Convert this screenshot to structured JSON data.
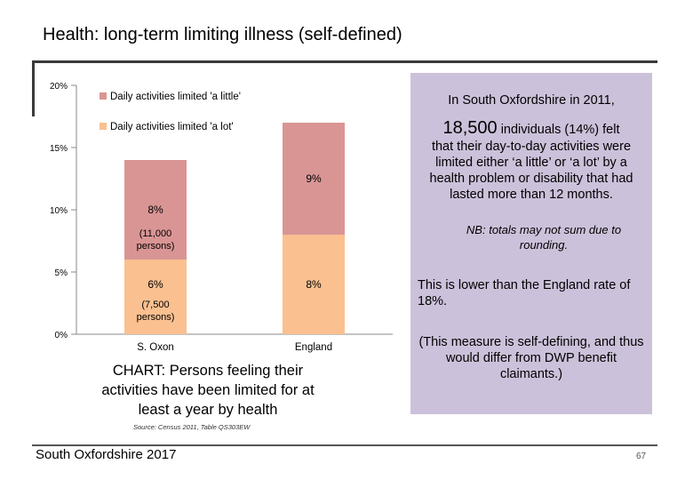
{
  "page": {
    "title": "Health: long-term limiting illness (self-defined)",
    "footer_left": "South Oxfordshire  2017",
    "page_number": "67"
  },
  "chart_data": {
    "type": "bar",
    "stacked": true,
    "categories": [
      "S. Oxon",
      "England"
    ],
    "series": [
      {
        "name": "Daily activities limited 'a lot'",
        "values": [
          6,
          8
        ],
        "color": "#fac090"
      },
      {
        "name": "Daily activities limited 'a little'",
        "values": [
          8,
          9
        ],
        "color": "#d99594"
      }
    ],
    "data_labels": {
      "S. Oxon": {
        "lot": "6%",
        "lot_note": "(7,500 persons)",
        "little": "8%",
        "little_note": "(11,000 persons)"
      },
      "England": {
        "lot": "8%",
        "little": "9%"
      }
    },
    "legend": [
      "Daily activities limited 'a little'",
      "Daily activities limited 'a lot'"
    ],
    "legend_position": "top-left",
    "y_ticks": [
      "0%",
      "5%",
      "10%",
      "15%",
      "20%"
    ],
    "ylim": [
      0,
      20
    ],
    "title": "",
    "xlabel": "",
    "ylabel": ""
  },
  "chart_caption": "CHART: Persons feeling their activities have been limited for at least a year by health",
  "source_note": "Source: Census 2011, Table QS303EW",
  "panel": {
    "p1_line1": "In South Oxfordshire in 2011,",
    "p1_big": "18,500",
    "p1_tail": " individuals (14%) felt",
    "p1_rest": "that their day-to-day activities were limited either ‘a little’ or ‘a lot’ by a health problem or disability that had lasted more than 12 months.",
    "nb": "NB: totals may not sum due to rounding.",
    "p2": "This is lower than the England rate of 18%.",
    "p3": "(This measure is self-defining, and thus would differ from DWP benefit claimants.)"
  }
}
